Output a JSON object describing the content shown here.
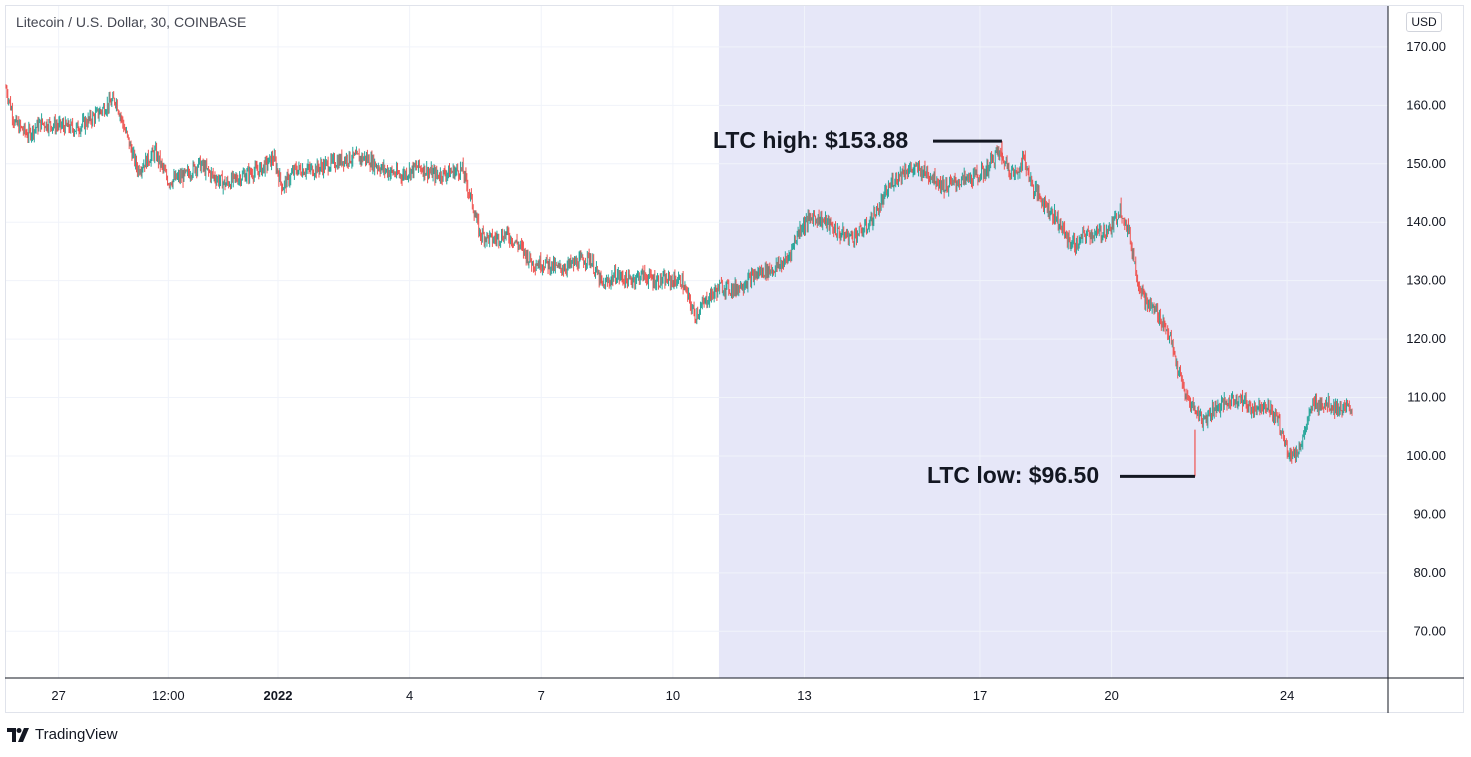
{
  "header": {
    "symbol": "Litecoin / U.S. Dollar, 30, COINBASE",
    "currency_button": "USD"
  },
  "branding": {
    "name": "TradingView"
  },
  "colors": {
    "up": "#26a69a",
    "down": "#ef5350",
    "highlight": "#e6e7f8",
    "grid": "#f0f3fa",
    "annotation_line": "#131722"
  },
  "chart_data": {
    "type": "candlestick",
    "title": "Litecoin / U.S. Dollar, 30, COINBASE",
    "ylim": [
      62,
      177
    ],
    "y_ticks": [
      "70.00",
      "80.00",
      "90.00",
      "100.00",
      "110.00",
      "120.00",
      "130.00",
      "140.00",
      "150.00",
      "160.00",
      "170.00"
    ],
    "x_ticks": [
      {
        "label": "27",
        "day": 27,
        "bold": false
      },
      {
        "label": "12:00",
        "day": 29.5,
        "bold": false
      },
      {
        "label": "2022",
        "day": 32,
        "bold": true
      },
      {
        "label": "4",
        "day": 35,
        "bold": false
      },
      {
        "label": "7",
        "day": 38,
        "bold": false
      },
      {
        "label": "10",
        "day": 41,
        "bold": false
      },
      {
        "label": "13",
        "day": 44,
        "bold": false
      },
      {
        "label": "17",
        "day": 48,
        "bold": false
      },
      {
        "label": "20",
        "day": 51,
        "bold": false
      },
      {
        "label": "24",
        "day": 55,
        "bold": false
      }
    ],
    "x_range": [
      25.8,
      57.3
    ],
    "highlight_from_day": 42.05,
    "price_path": [
      [
        25.8,
        163
      ],
      [
        26.0,
        157
      ],
      [
        26.3,
        155
      ],
      [
        26.6,
        157
      ],
      [
        27.0,
        156.5
      ],
      [
        27.4,
        156
      ],
      [
        27.8,
        158
      ],
      [
        28.1,
        160
      ],
      [
        28.3,
        161
      ],
      [
        28.5,
        156
      ],
      [
        28.8,
        149
      ],
      [
        29.2,
        152
      ],
      [
        29.5,
        147
      ],
      [
        29.9,
        148
      ],
      [
        30.2,
        150
      ],
      [
        30.5,
        148
      ],
      [
        30.8,
        146.5
      ],
      [
        31.2,
        148
      ],
      [
        31.6,
        149
      ],
      [
        31.9,
        151
      ],
      [
        32.1,
        146
      ],
      [
        32.4,
        149
      ],
      [
        32.8,
        149
      ],
      [
        33.2,
        150
      ],
      [
        33.6,
        151
      ],
      [
        34.0,
        151
      ],
      [
        34.4,
        149
      ],
      [
        34.8,
        148
      ],
      [
        35.2,
        149.5
      ],
      [
        35.6,
        148
      ],
      [
        35.9,
        148.5
      ],
      [
        36.2,
        149
      ],
      [
        36.4,
        144
      ],
      [
        36.6,
        138
      ],
      [
        36.9,
        137
      ],
      [
        37.2,
        138
      ],
      [
        37.5,
        136
      ],
      [
        37.8,
        133
      ],
      [
        38.1,
        133
      ],
      [
        38.4,
        132
      ],
      [
        38.8,
        133
      ],
      [
        39.1,
        134
      ],
      [
        39.4,
        129
      ],
      [
        39.7,
        131
      ],
      [
        40.0,
        130
      ],
      [
        40.3,
        131
      ],
      [
        40.6,
        130
      ],
      [
        40.9,
        130
      ],
      [
        41.2,
        130
      ],
      [
        41.5,
        124
      ],
      [
        41.8,
        127
      ],
      [
        42.1,
        129
      ],
      [
        42.4,
        128.5
      ],
      [
        42.7,
        130
      ],
      [
        43.0,
        131.5
      ],
      [
        43.3,
        132
      ],
      [
        43.6,
        133.5
      ],
      [
        43.9,
        139
      ],
      [
        44.2,
        141
      ],
      [
        44.5,
        140
      ],
      [
        44.8,
        138
      ],
      [
        45.1,
        137.5
      ],
      [
        45.4,
        139
      ],
      [
        45.7,
        142.5
      ],
      [
        46.0,
        147
      ],
      [
        46.3,
        149
      ],
      [
        46.6,
        149
      ],
      [
        46.9,
        148
      ],
      [
        47.2,
        146
      ],
      [
        47.5,
        147
      ],
      [
        47.8,
        147.5
      ],
      [
        48.1,
        148.5
      ],
      [
        48.4,
        152
      ],
      [
        48.6,
        150
      ],
      [
        48.8,
        148
      ],
      [
        49.0,
        151
      ],
      [
        49.2,
        146
      ],
      [
        49.4,
        144
      ],
      [
        49.6,
        142
      ],
      [
        49.8,
        140
      ],
      [
        50.0,
        137
      ],
      [
        50.2,
        136
      ],
      [
        50.4,
        138
      ],
      [
        50.7,
        138
      ],
      [
        51.0,
        139
      ],
      [
        51.2,
        142.5
      ],
      [
        51.4,
        138
      ],
      [
        51.6,
        130
      ],
      [
        51.8,
        126
      ],
      [
        52.0,
        125
      ],
      [
        52.3,
        121
      ],
      [
        52.5,
        115
      ],
      [
        52.7,
        110
      ],
      [
        52.9,
        108
      ],
      [
        53.1,
        106
      ],
      [
        53.3,
        108
      ],
      [
        53.6,
        109
      ],
      [
        53.9,
        110
      ],
      [
        54.2,
        108
      ],
      [
        54.5,
        109
      ],
      [
        54.8,
        106
      ],
      [
        55.0,
        101
      ],
      [
        55.2,
        100
      ],
      [
        55.4,
        104
      ],
      [
        55.6,
        109
      ],
      [
        55.9,
        109
      ],
      [
        56.2,
        108
      ],
      [
        56.5,
        108
      ]
    ],
    "annotations": [
      {
        "label": "LTC high: $153.88",
        "value": 153.88,
        "day": 48.5
      },
      {
        "label": "LTC low: $96.50",
        "value": 96.5,
        "day": 52.9
      }
    ]
  }
}
